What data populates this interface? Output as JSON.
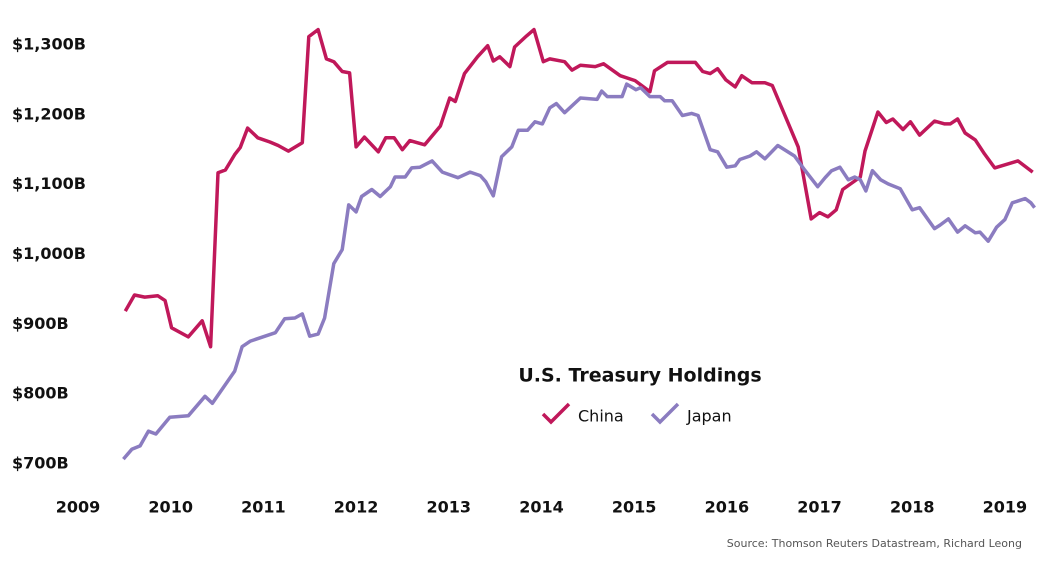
{
  "chart_data": {
    "type": "line",
    "title": "U.S. Treasury Holdings",
    "source": "Source: Thomson Reuters Datastream, Richard Leong",
    "xlim": [
      2009,
      2019.4
    ],
    "xticks": [
      2009,
      2010,
      2011,
      2012,
      2013,
      2014,
      2015,
      2016,
      2017,
      2018,
      2019
    ],
    "ylim": [
      690,
      1330
    ],
    "yticks": [
      {
        "value": 700,
        "label": "$700B"
      },
      {
        "value": 800,
        "label": "$800B"
      },
      {
        "value": 900,
        "label": "$900B"
      },
      {
        "value": 1000,
        "label": "$1,000B"
      },
      {
        "value": 1100,
        "label": "$1,100B"
      },
      {
        "value": 1200,
        "label": "$1,200B"
      },
      {
        "value": 1300,
        "label": "$1,300B"
      }
    ],
    "grid": false,
    "legend": "center",
    "series": [
      {
        "name": "China",
        "color": "#c0185a",
        "x": [
          2009.51,
          2009.61,
          2009.72,
          2009.86,
          2009.94,
          2010.01,
          2010.19,
          2010.34,
          2010.43,
          2010.51,
          2010.59,
          2010.69,
          2010.75,
          2010.83,
          2010.94,
          2011.07,
          2011.16,
          2011.27,
          2011.42,
          2011.49,
          2011.59,
          2011.68,
          2011.76,
          2011.85,
          2011.93,
          2012.0,
          2012.09,
          2012.24,
          2012.32,
          2012.41,
          2012.5,
          2012.58,
          2012.74,
          2012.91,
          2013.01,
          2013.07,
          2013.17,
          2013.31,
          2013.42,
          2013.48,
          2013.55,
          2013.66,
          2013.71,
          2013.84,
          2013.92,
          2014.02,
          2014.09,
          2014.25,
          2014.33,
          2014.42,
          2014.58,
          2014.67,
          2014.85,
          2015.01,
          2015.17,
          2015.22,
          2015.36,
          2015.66,
          2015.74,
          2015.82,
          2015.9,
          2015.99,
          2016.09,
          2016.16,
          2016.27,
          2016.41,
          2016.49,
          2016.77,
          2016.91,
          2017.0,
          2017.09,
          2017.18,
          2017.25,
          2017.44,
          2017.49,
          2017.63,
          2017.72,
          2017.79,
          2017.9,
          2017.98,
          2018.08,
          2018.24,
          2018.35,
          2018.41,
          2018.49,
          2018.57,
          2018.68,
          2018.78,
          2018.89,
          2019.14,
          2019.3
        ],
        "values": [
          919,
          942,
          939,
          941,
          934,
          895,
          882,
          905,
          868,
          1117,
          1121,
          1143,
          1153,
          1181,
          1167,
          1161,
          1156,
          1148,
          1160,
          1312,
          1322,
          1280,
          1276,
          1262,
          1260,
          1154,
          1168,
          1147,
          1167,
          1167,
          1150,
          1163,
          1157,
          1184,
          1224,
          1219,
          1259,
          1283,
          1299,
          1277,
          1283,
          1269,
          1297,
          1313,
          1322,
          1276,
          1280,
          1276,
          1264,
          1271,
          1269,
          1273,
          1256,
          1249,
          1233,
          1263,
          1275,
          1275,
          1262,
          1259,
          1266,
          1250,
          1240,
          1256,
          1246,
          1246,
          1242,
          1154,
          1051,
          1060,
          1054,
          1064,
          1093,
          1111,
          1148,
          1204,
          1189,
          1194,
          1179,
          1190,
          1171,
          1191,
          1187,
          1187,
          1194,
          1174,
          1164,
          1144,
          1124,
          1134,
          1118
        ]
      },
      {
        "name": "Japan",
        "color": "#8b7cc0",
        "x": [
          2009.49,
          2009.58,
          2009.67,
          2009.76,
          2009.84,
          2009.99,
          2010.19,
          2010.37,
          2010.45,
          2010.69,
          2010.77,
          2010.86,
          2011.13,
          2011.23,
          2011.34,
          2011.42,
          2011.5,
          2011.59,
          2011.66,
          2011.76,
          2011.85,
          2011.92,
          2012.0,
          2012.06,
          2012.17,
          2012.26,
          2012.37,
          2012.42,
          2012.53,
          2012.6,
          2012.69,
          2012.82,
          2012.93,
          2013.1,
          2013.23,
          2013.34,
          2013.4,
          2013.48,
          2013.57,
          2013.68,
          2013.75,
          2013.85,
          2013.93,
          2014.01,
          2014.09,
          2014.16,
          2014.25,
          2014.42,
          2014.6,
          2014.65,
          2014.71,
          2014.87,
          2014.92,
          2015.02,
          2015.07,
          2015.17,
          2015.28,
          2015.33,
          2015.41,
          2015.52,
          2015.62,
          2015.69,
          2015.82,
          2015.9,
          2016.0,
          2016.09,
          2016.14,
          2016.25,
          2016.32,
          2016.41,
          2016.55,
          2016.73,
          2016.84,
          2016.98,
          2017.06,
          2017.13,
          2017.22,
          2017.31,
          2017.38,
          2017.44,
          2017.5,
          2017.57,
          2017.66,
          2017.74,
          2017.87,
          2018.0,
          2018.08,
          2018.24,
          2018.3,
          2018.39,
          2018.49,
          2018.57,
          2018.68,
          2018.73,
          2018.82,
          2018.91,
          2019.0,
          2019.08,
          2019.22,
          2019.28,
          2019.32
        ],
        "values": [
          707,
          721,
          726,
          747,
          743,
          767,
          769,
          797,
          787,
          833,
          868,
          876,
          888,
          908,
          909,
          915,
          883,
          886,
          909,
          987,
          1007,
          1071,
          1061,
          1083,
          1093,
          1083,
          1097,
          1111,
          1111,
          1124,
          1125,
          1134,
          1118,
          1110,
          1118,
          1113,
          1104,
          1084,
          1140,
          1154,
          1178,
          1178,
          1190,
          1187,
          1210,
          1216,
          1203,
          1224,
          1222,
          1234,
          1226,
          1226,
          1244,
          1236,
          1239,
          1226,
          1226,
          1220,
          1220,
          1199,
          1202,
          1199,
          1150,
          1147,
          1125,
          1127,
          1136,
          1141,
          1147,
          1137,
          1156,
          1141,
          1121,
          1097,
          1110,
          1120,
          1125,
          1107,
          1111,
          1107,
          1091,
          1120,
          1107,
          1101,
          1094,
          1064,
          1067,
          1037,
          1042,
          1051,
          1032,
          1041,
          1031,
          1032,
          1019,
          1039,
          1050,
          1074,
          1080,
          1074,
          1067
        ]
      }
    ]
  }
}
